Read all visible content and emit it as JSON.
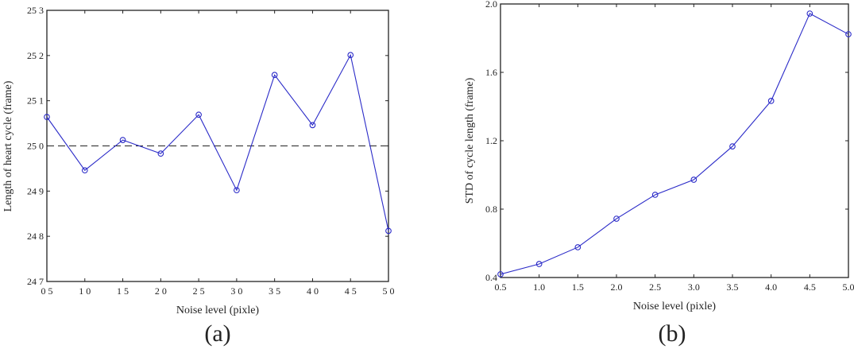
{
  "chart_data": [
    {
      "id": "a",
      "type": "line",
      "panel_label": "(a)",
      "title": "",
      "xlabel": "Noise level (pixle)",
      "ylabel": "Length of heart cycle (frame)",
      "x": [
        0.5,
        1.0,
        1.5,
        2.0,
        2.5,
        3.0,
        3.5,
        4.0,
        4.5,
        5.0
      ],
      "x_tick_labels": [
        "0 5",
        "1 0",
        "1 5",
        "2 0",
        "2 5",
        "3 0",
        "3 5",
        "4 0",
        "4 5",
        "5 0"
      ],
      "y_ticks": [
        24.7,
        24.8,
        24.9,
        25.0,
        25.1,
        25.2,
        25.3
      ],
      "y_tick_labels": [
        "24 7",
        "24 8",
        "24 9",
        "25 0",
        "25 1",
        "25 2",
        "25 3"
      ],
      "xlim": [
        0.5,
        5.0
      ],
      "ylim": [
        24.7,
        25.3
      ],
      "series": [
        {
          "name": "cycle length",
          "color": "#2b2bc8",
          "marker": "circle",
          "values": [
            25.064,
            24.946,
            25.013,
            24.983,
            25.069,
            24.902,
            25.157,
            25.046,
            25.201,
            24.812
          ]
        }
      ],
      "reference_line": {
        "y": 25.0,
        "style": "dashed",
        "color": "#222222"
      },
      "grid": false,
      "legend": null
    },
    {
      "id": "b",
      "type": "line",
      "panel_label": "(b)",
      "title": "",
      "xlabel": "Noise level (pixle)",
      "ylabel": "STD of cycle length (frame)",
      "x": [
        0.5,
        1.0,
        1.5,
        2.0,
        2.5,
        3.0,
        3.5,
        4.0,
        4.5,
        5.0
      ],
      "x_tick_labels": [
        "0.5",
        "1.0",
        "1.5",
        "2.0",
        "2.5",
        "3.0",
        "3.5",
        "4.0",
        "4.5",
        "5.0"
      ],
      "y_ticks": [
        0.4,
        0.8,
        1.2,
        1.6,
        2.0
      ],
      "y_tick_labels": [
        "0.4",
        "0.8",
        "1.2",
        "1.6",
        "2.0"
      ],
      "xlim": [
        0.5,
        5.0
      ],
      "ylim": [
        0.4,
        2.0
      ],
      "series": [
        {
          "name": "STD",
          "color": "#2b2bc8",
          "marker": "circle",
          "values": [
            0.419,
            0.479,
            0.577,
            0.744,
            0.884,
            0.972,
            1.167,
            1.433,
            1.944,
            1.823
          ]
        }
      ],
      "grid": false,
      "legend": null
    }
  ],
  "captions": {
    "a": "(a)",
    "b": "(b)"
  },
  "colors": {
    "series": "#2b2bc8",
    "axis": "#222222"
  }
}
